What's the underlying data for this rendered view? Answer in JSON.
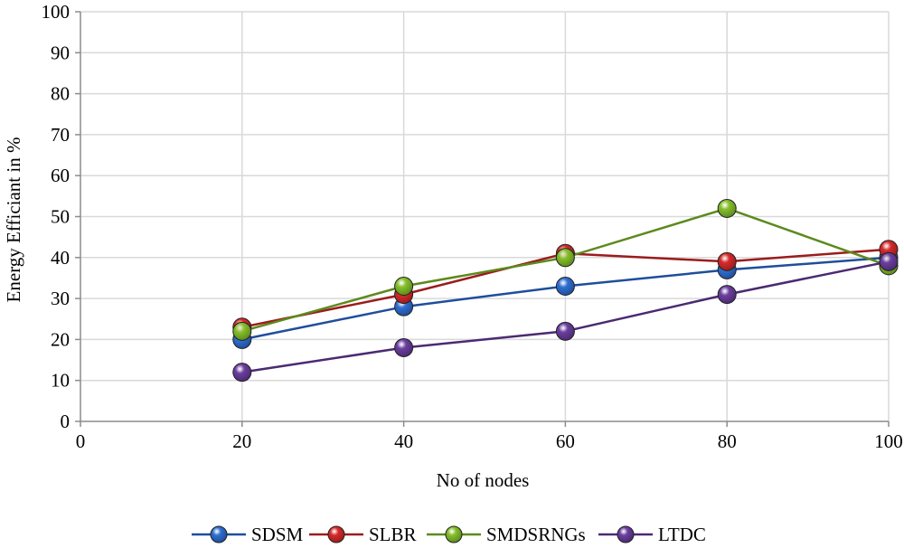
{
  "chart_data": {
    "type": "line",
    "title": "",
    "xlabel": "No of nodes",
    "ylabel": "Energy Efficiant in %",
    "xlim": [
      0,
      100
    ],
    "ylim": [
      0,
      100
    ],
    "x_ticks": [
      0,
      20,
      40,
      60,
      80,
      100
    ],
    "y_ticks": [
      0,
      10,
      20,
      30,
      40,
      50,
      60,
      70,
      80,
      90,
      100
    ],
    "grid": true,
    "legend_position": "bottom",
    "x": [
      20,
      40,
      60,
      80,
      100
    ],
    "series": [
      {
        "name": "SDSM",
        "values": [
          20,
          28,
          33,
          37,
          40
        ],
        "color": "#1f4e9b",
        "marker": "#2f6fd1"
      },
      {
        "name": "SLBR",
        "values": [
          23,
          31,
          41,
          39,
          42
        ],
        "color": "#9b1c1c",
        "marker": "#d62a2a"
      },
      {
        "name": "SMDSRNGs",
        "values": [
          22,
          33,
          40,
          52,
          38
        ],
        "color": "#5c8a1e",
        "marker": "#86bf2a"
      },
      {
        "name": "LTDC",
        "values": [
          12,
          18,
          22,
          31,
          39
        ],
        "color": "#4b2a72",
        "marker": "#6c3fa0"
      }
    ]
  }
}
